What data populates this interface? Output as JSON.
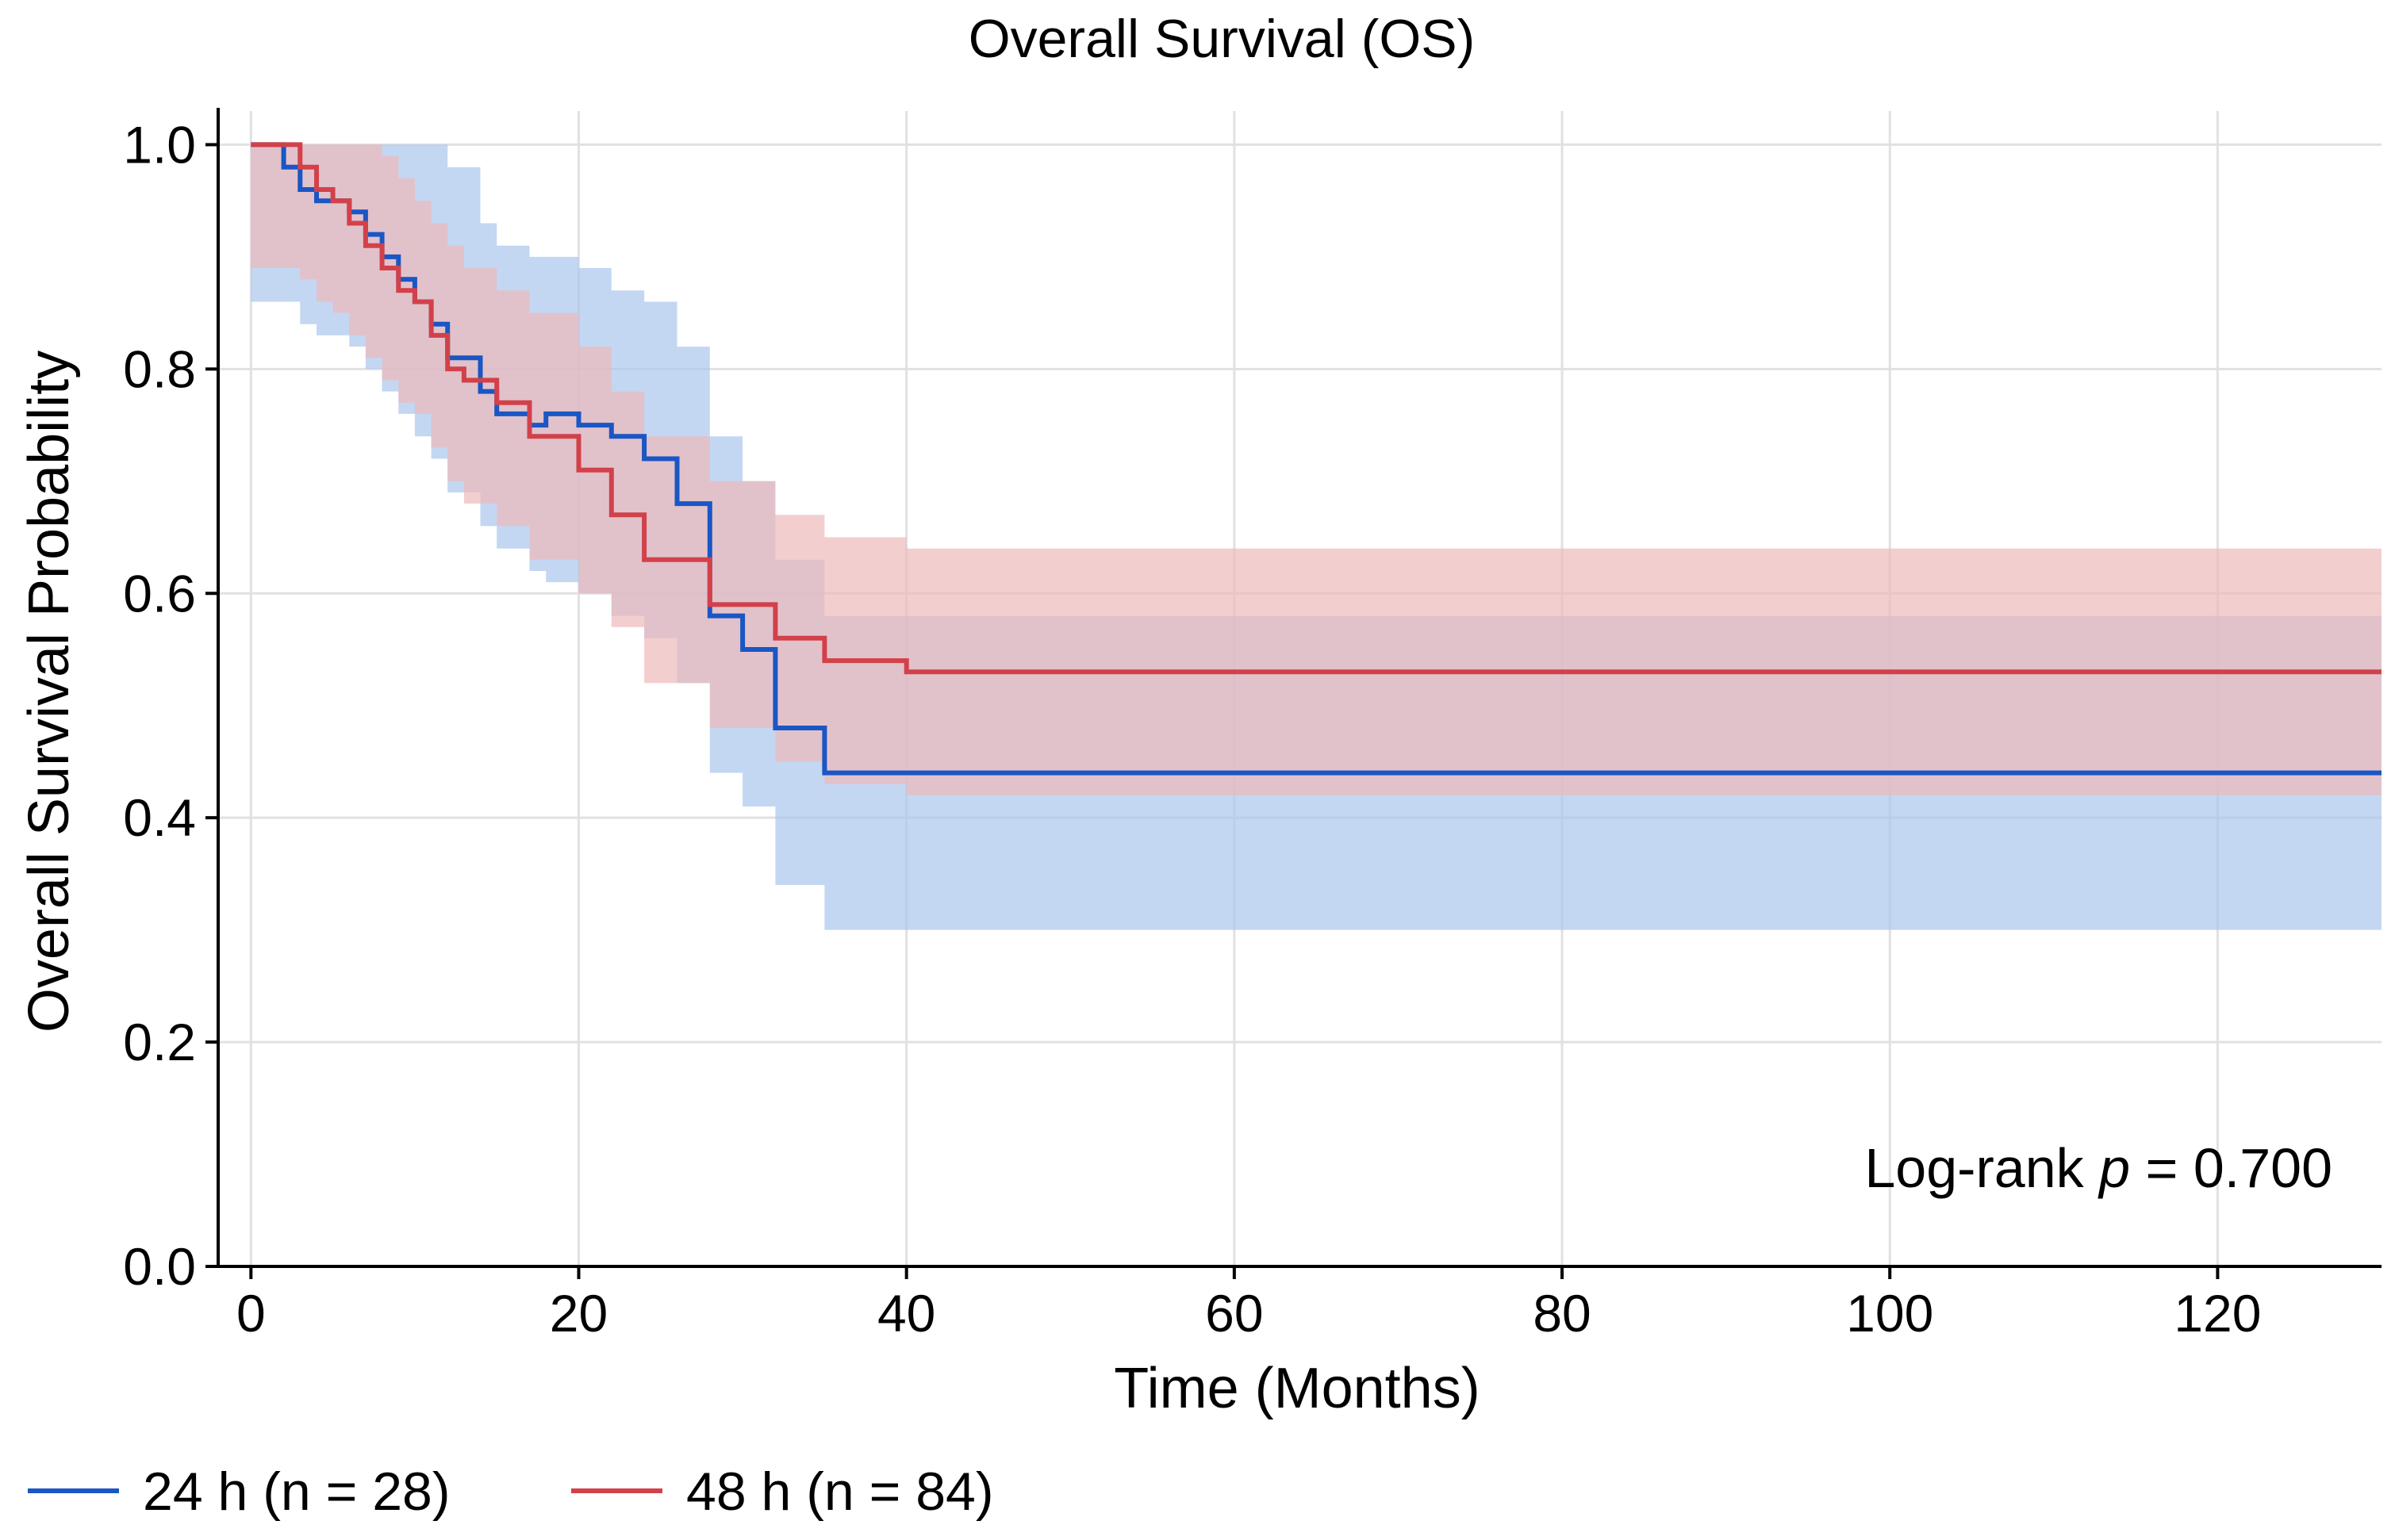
{
  "chart_data": {
    "type": "line",
    "title": "Overall Survival (OS)",
    "xlabel": "Time (Months)",
    "ylabel": "Overall Survival Probability",
    "xlim": [
      -2,
      130
    ],
    "ylim": [
      0,
      1.03
    ],
    "xticks": [
      0,
      20,
      40,
      60,
      80,
      100,
      120
    ],
    "xtick_labels": [
      "0",
      "20",
      "40",
      "60",
      "80",
      "100",
      "120"
    ],
    "yticks": [
      0,
      0.2,
      0.4,
      0.6,
      0.8,
      1.0
    ],
    "ytick_labels": [
      "0.0",
      "0.2",
      "0.4",
      "0.6",
      "0.8",
      "1.0"
    ],
    "grid": true,
    "legend_position": "bottom-left, below plot",
    "annotation": {
      "prefix": "Log-rank ",
      "italic": "p",
      "suffix": " = 0.700"
    },
    "series": [
      {
        "name": "24 h (n = 28)",
        "color": "#1a56c4",
        "band_color": "#a9c6ec",
        "x": [
          0,
          2,
          3,
          4,
          6,
          7,
          8,
          9,
          10,
          11,
          12,
          14,
          15,
          17,
          18,
          20,
          22,
          24,
          26,
          28,
          30,
          32,
          35,
          130
        ],
        "y": [
          1.0,
          0.98,
          0.96,
          0.95,
          0.94,
          0.92,
          0.9,
          0.88,
          0.86,
          0.84,
          0.81,
          0.78,
          0.76,
          0.75,
          0.76,
          0.75,
          0.74,
          0.72,
          0.68,
          0.58,
          0.55,
          0.48,
          0.44,
          0.44
        ],
        "lower": [
          0.86,
          0.86,
          0.84,
          0.83,
          0.82,
          0.8,
          0.78,
          0.76,
          0.74,
          0.72,
          0.69,
          0.66,
          0.64,
          0.62,
          0.61,
          0.6,
          0.58,
          0.56,
          0.52,
          0.44,
          0.41,
          0.34,
          0.3,
          0.3
        ],
        "upper": [
          1.0,
          1.0,
          1.0,
          1.0,
          1.0,
          1.0,
          1.0,
          1.0,
          1.0,
          1.0,
          0.98,
          0.93,
          0.91,
          0.9,
          0.9,
          0.89,
          0.87,
          0.86,
          0.82,
          0.74,
          0.7,
          0.63,
          0.58,
          0.58
        ]
      },
      {
        "name": "48 h (n = 84)",
        "color": "#d2414a",
        "band_color": "#eeb9bb",
        "x": [
          0,
          2,
          3,
          4,
          5,
          6,
          7,
          8,
          9,
          10,
          11,
          12,
          13,
          15,
          17,
          20,
          22,
          24,
          28,
          32,
          35,
          40,
          130
        ],
        "y": [
          1.0,
          1.0,
          0.98,
          0.96,
          0.95,
          0.93,
          0.91,
          0.89,
          0.87,
          0.86,
          0.83,
          0.8,
          0.79,
          0.77,
          0.74,
          0.71,
          0.67,
          0.63,
          0.59,
          0.56,
          0.54,
          0.53,
          0.53
        ],
        "lower": [
          0.89,
          0.89,
          0.88,
          0.86,
          0.85,
          0.83,
          0.81,
          0.79,
          0.77,
          0.76,
          0.73,
          0.7,
          0.68,
          0.66,
          0.63,
          0.6,
          0.57,
          0.52,
          0.48,
          0.45,
          0.43,
          0.42,
          0.42
        ],
        "upper": [
          1.0,
          1.0,
          1.0,
          1.0,
          1.0,
          1.0,
          1.0,
          0.99,
          0.97,
          0.95,
          0.93,
          0.91,
          0.89,
          0.87,
          0.85,
          0.82,
          0.78,
          0.74,
          0.7,
          0.67,
          0.65,
          0.64,
          0.64
        ]
      }
    ]
  }
}
